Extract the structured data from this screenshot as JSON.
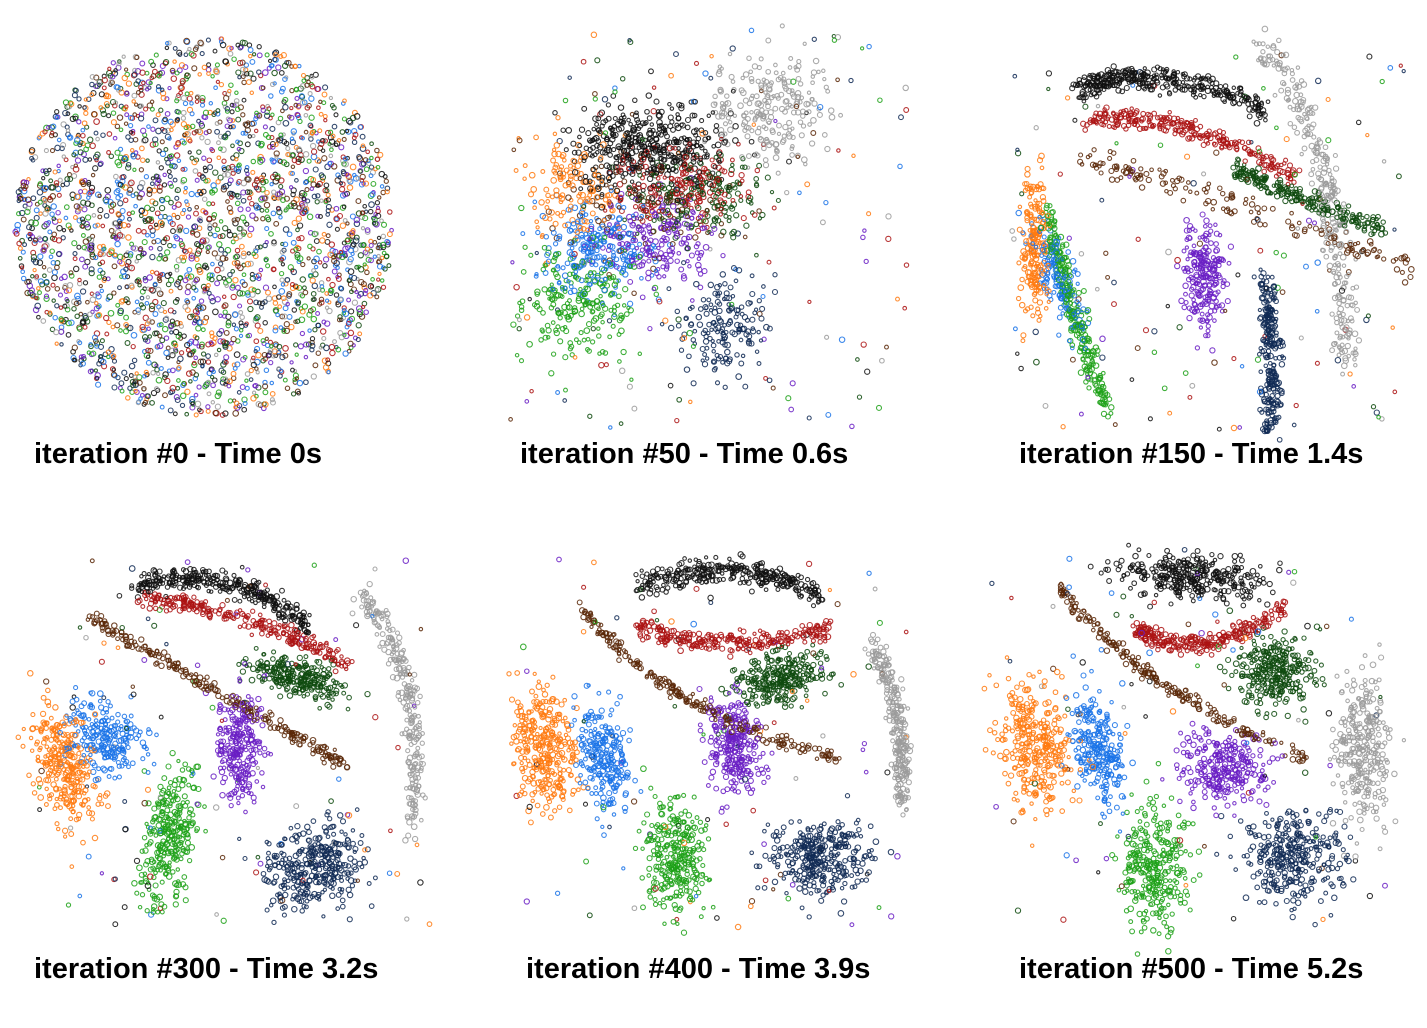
{
  "colors": {
    "0": "#102a55",
    "1": "#1da117",
    "2": "#6a1fc4",
    "3": "#ab1313",
    "4": "#0e4a0e",
    "5": "#5a2808",
    "6": "#9b9b9b",
    "7": "#111111",
    "8": "#ff7a10",
    "9": "#1a73e8"
  },
  "panels": [
    {
      "caption": "iteration #0 - Time 0s",
      "stage": 0
    },
    {
      "caption": "iteration #50 - Time 0.6s",
      "stage": 1
    },
    {
      "caption": "iteration #150 - Time 1.4s",
      "stage": 2
    },
    {
      "caption": "iteration #300 - Time 3.2s",
      "stage": 3
    },
    {
      "caption": "iteration #400 - Time 3.9s",
      "stage": 4
    },
    {
      "caption": "iteration #500 - Time 5.2s",
      "stage": 5
    }
  ],
  "chart_data": [
    {
      "type": "scatter",
      "title": "iteration #0 - Time 0s"
    },
    {
      "type": "scatter",
      "title": "iteration #50 - Time 0.6s"
    },
    {
      "type": "scatter",
      "title": "iteration #150 - Time 1.4s"
    },
    {
      "type": "scatter",
      "title": "iteration #300 - Time 3.2s"
    },
    {
      "type": "scatter",
      "title": "iteration #400 - Time 3.9s"
    },
    {
      "type": "scatter",
      "title": "iteration #500 - Time 5.2s"
    }
  ]
}
